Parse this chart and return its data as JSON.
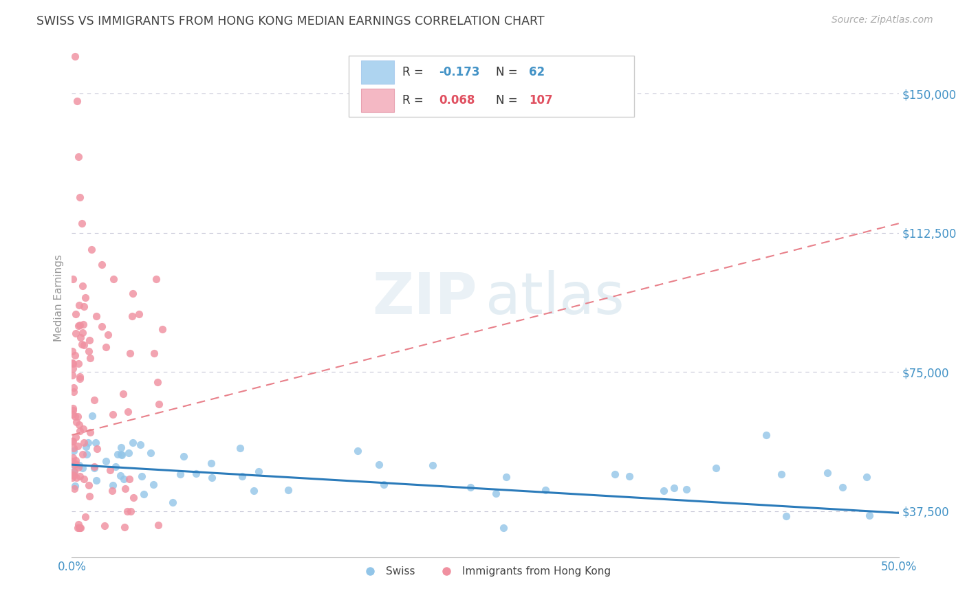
{
  "title": "SWISS VS IMMIGRANTS FROM HONG KONG MEDIAN EARNINGS CORRELATION CHART",
  "source": "Source: ZipAtlas.com",
  "ylabel": "Median Earnings",
  "xlim": [
    0.0,
    0.5
  ],
  "ylim": [
    25000,
    165000
  ],
  "yticks": [
    37500,
    75000,
    112500,
    150000
  ],
  "ytick_labels": [
    "$37,500",
    "$75,000",
    "$112,500",
    "$150,000"
  ],
  "xticks": [
    0.0,
    0.5
  ],
  "xtick_labels": [
    "0.0%",
    "50.0%"
  ],
  "swiss_color": "#92c5e8",
  "hk_color": "#f090a0",
  "trend_swiss_color": "#2b7bba",
  "trend_hk_color": "#e8808a",
  "background_color": "#ffffff",
  "grid_color": "#c8c8d8",
  "title_color": "#444444",
  "axis_color": "#4292c6",
  "legend_swiss_color": "#aed4f0",
  "legend_hk_color": "#f4b8c4",
  "swiss_R": "-0.173",
  "swiss_N": "62",
  "hk_R": "0.068",
  "hk_N": "107",
  "legend_R_color": "#333333",
  "legend_val_swiss": "#4292c6",
  "legend_val_hk": "#e05060",
  "watermark_zip_color": "#e0e8f0",
  "watermark_atlas_color": "#c8dce8",
  "swiss_trend_x": [
    0.0,
    0.5
  ],
  "swiss_trend_y": [
    50000,
    37000
  ],
  "hk_trend_x": [
    0.0,
    0.5
  ],
  "hk_trend_y": [
    58000,
    115000
  ]
}
